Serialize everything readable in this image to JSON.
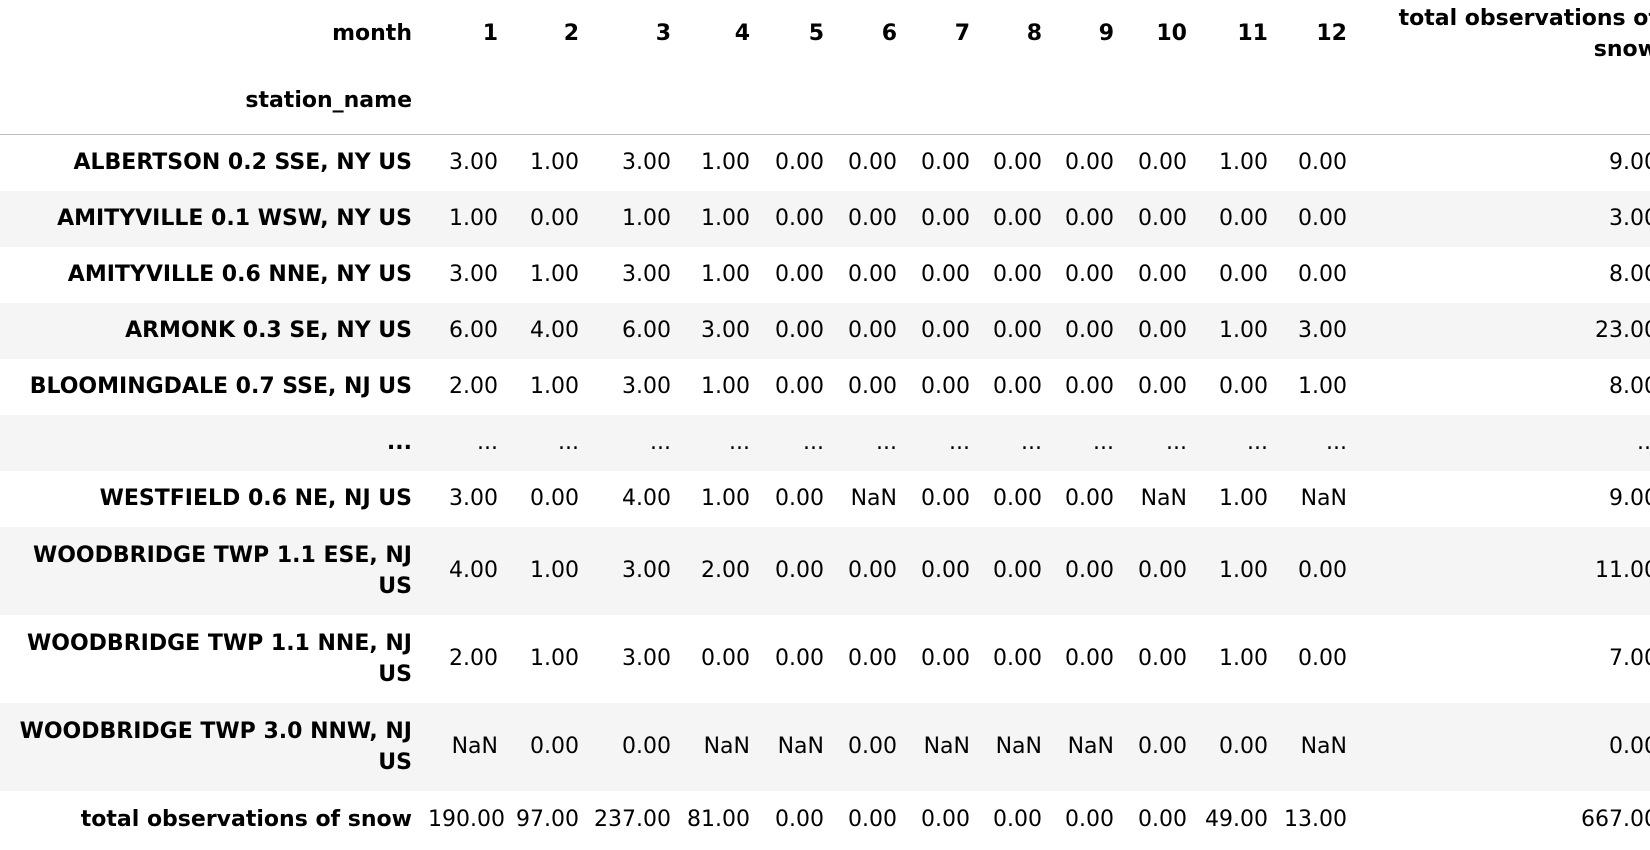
{
  "header": {
    "index_label": "month",
    "row_index_label": "station_name",
    "months": [
      "1",
      "2",
      "3",
      "4",
      "5",
      "6",
      "7",
      "8",
      "9",
      "10",
      "11",
      "12"
    ],
    "total_label": "total observations of snow"
  },
  "rows": [
    {
      "station": "ALBERTSON 0.2 SSE, NY US",
      "values": [
        "3.00",
        "1.00",
        "3.00",
        "1.00",
        "0.00",
        "0.00",
        "0.00",
        "0.00",
        "0.00",
        "0.00",
        "1.00",
        "0.00"
      ],
      "total": "9.00"
    },
    {
      "station": "AMITYVILLE 0.1 WSW, NY US",
      "values": [
        "1.00",
        "0.00",
        "1.00",
        "1.00",
        "0.00",
        "0.00",
        "0.00",
        "0.00",
        "0.00",
        "0.00",
        "0.00",
        "0.00"
      ],
      "total": "3.00"
    },
    {
      "station": "AMITYVILLE 0.6 NNE, NY US",
      "values": [
        "3.00",
        "1.00",
        "3.00",
        "1.00",
        "0.00",
        "0.00",
        "0.00",
        "0.00",
        "0.00",
        "0.00",
        "0.00",
        "0.00"
      ],
      "total": "8.00"
    },
    {
      "station": "ARMONK 0.3 SE, NY US",
      "values": [
        "6.00",
        "4.00",
        "6.00",
        "3.00",
        "0.00",
        "0.00",
        "0.00",
        "0.00",
        "0.00",
        "0.00",
        "1.00",
        "3.00"
      ],
      "total": "23.00"
    },
    {
      "station": "BLOOMINGDALE 0.7 SSE, NJ US",
      "values": [
        "2.00",
        "1.00",
        "3.00",
        "1.00",
        "0.00",
        "0.00",
        "0.00",
        "0.00",
        "0.00",
        "0.00",
        "0.00",
        "1.00"
      ],
      "total": "8.00"
    },
    {
      "station": "...",
      "values": [
        "...",
        "...",
        "...",
        "...",
        "...",
        "...",
        "...",
        "...",
        "...",
        "...",
        "...",
        "..."
      ],
      "total": "..."
    },
    {
      "station": "WESTFIELD 0.6 NE, NJ US",
      "values": [
        "3.00",
        "0.00",
        "4.00",
        "1.00",
        "0.00",
        "NaN",
        "0.00",
        "0.00",
        "0.00",
        "NaN",
        "1.00",
        "NaN"
      ],
      "total": "9.00"
    },
    {
      "station": "WOODBRIDGE TWP 1.1 ESE, NJ US",
      "values": [
        "4.00",
        "1.00",
        "3.00",
        "2.00",
        "0.00",
        "0.00",
        "0.00",
        "0.00",
        "0.00",
        "0.00",
        "1.00",
        "0.00"
      ],
      "total": "11.00"
    },
    {
      "station": "WOODBRIDGE TWP 1.1 NNE, NJ US",
      "values": [
        "2.00",
        "1.00",
        "3.00",
        "0.00",
        "0.00",
        "0.00",
        "0.00",
        "0.00",
        "0.00",
        "0.00",
        "1.00",
        "0.00"
      ],
      "total": "7.00"
    },
    {
      "station": "WOODBRIDGE TWP 3.0 NNW, NJ US",
      "values": [
        "NaN",
        "0.00",
        "0.00",
        "NaN",
        "NaN",
        "0.00",
        "NaN",
        "NaN",
        "NaN",
        "0.00",
        "0.00",
        "NaN"
      ],
      "total": "0.00"
    },
    {
      "station": "total observations of snow",
      "values": [
        "190.00",
        "97.00",
        "237.00",
        "81.00",
        "0.00",
        "0.00",
        "0.00",
        "0.00",
        "0.00",
        "0.00",
        "49.00",
        "13.00"
      ],
      "total": "667.00"
    }
  ]
}
